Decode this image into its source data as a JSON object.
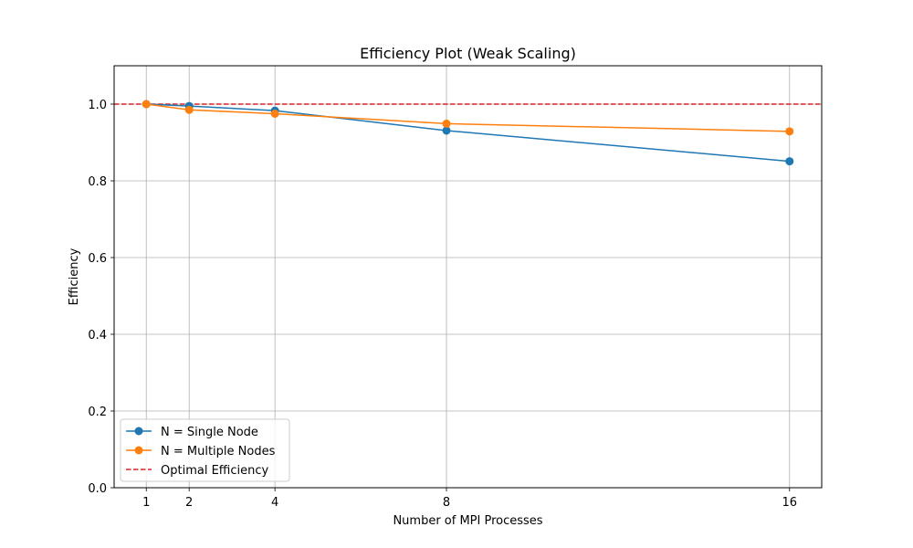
{
  "chart_data": {
    "type": "line",
    "title": "Efficiency Plot (Weak Scaling)",
    "xlabel": "Number of MPI Processes",
    "ylabel": "Efficiency",
    "x": [
      1,
      2,
      4,
      8,
      16
    ],
    "xticks": [
      1,
      2,
      4,
      8,
      16
    ],
    "yticks": [
      0.0,
      0.2,
      0.4,
      0.6,
      0.8,
      1.0
    ],
    "xlim": [
      0.25,
      16.75
    ],
    "ylim": [
      0.0,
      1.1
    ],
    "grid": true,
    "legend_position": "lower-left",
    "series": [
      {
        "name": "N = Single Node",
        "color": "#1f77b4",
        "marker": "circle",
        "values": [
          1.0,
          0.995,
          0.983,
          0.931,
          0.851
        ]
      },
      {
        "name": "N = Multiple Nodes",
        "color": "#ff7f0e",
        "marker": "circle",
        "values": [
          1.0,
          0.985,
          0.975,
          0.949,
          0.929
        ]
      }
    ],
    "reference_line": {
      "name": "Optimal Efficiency",
      "color": "#d62728",
      "style": "dashed",
      "value": 1.0
    }
  }
}
